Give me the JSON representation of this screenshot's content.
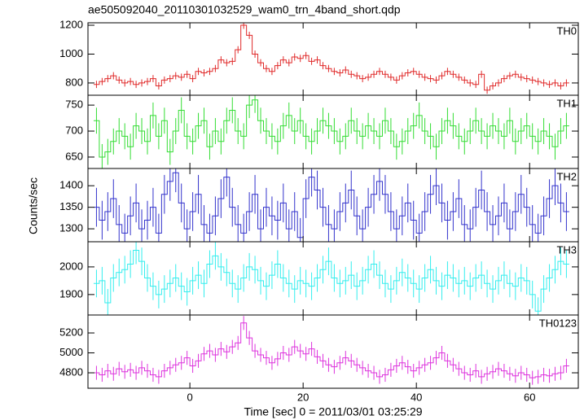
{
  "title": "ae505092040_20110301032529_wam0_trn_4band_short.qdp",
  "xlabel": "Time [sec] 0 = 2011/03/01 03:25:29",
  "ylabel": "Counts/sec",
  "xlim": [
    -18,
    68.6
  ],
  "xticks": [
    0,
    20,
    40,
    60
  ],
  "x": [
    -16.5,
    -15.5,
    -14.5,
    -13.5,
    -12.5,
    -11.5,
    -10.5,
    -9.5,
    -8.5,
    -7.5,
    -6.5,
    -5.5,
    -4.5,
    -3.5,
    -2.5,
    -1.5,
    -0.5,
    0.5,
    1.5,
    2.5,
    3.5,
    4.5,
    5.5,
    6.5,
    7.5,
    8.5,
    9.5,
    10.5,
    11.5,
    12.5,
    13.5,
    14.5,
    15.5,
    16.5,
    17.5,
    18.5,
    19.5,
    20.5,
    21.5,
    22.5,
    23.5,
    24.5,
    25.5,
    26.5,
    27.5,
    28.5,
    29.5,
    30.5,
    31.5,
    32.5,
    33.5,
    34.5,
    35.5,
    36.5,
    37.5,
    38.5,
    39.5,
    40.5,
    41.5,
    42.5,
    43.5,
    44.5,
    45.5,
    46.5,
    47.5,
    48.5,
    49.5,
    50.5,
    51.5,
    52.5,
    53.5,
    54.5,
    55.5,
    56.5,
    57.5,
    58.5,
    59.5,
    60.5,
    61.5,
    62.5,
    63.5,
    64.5,
    65.5,
    66.5
  ],
  "chart_data": [
    {
      "type": "step",
      "label": "TH0",
      "color": "#e02a2a",
      "ylim": [
        715,
        1217
      ],
      "yticks": [
        800,
        1000,
        1200
      ],
      "error": 25,
      "values": [
        790,
        810,
        830,
        850,
        820,
        800,
        810,
        790,
        800,
        810,
        830,
        780,
        820,
        830,
        850,
        840,
        860,
        830,
        880,
        870,
        880,
        900,
        960,
        940,
        950,
        1030,
        1200,
        1130,
        1000,
        940,
        900,
        880,
        920,
        960,
        940,
        980,
        970,
        990,
        950,
        960,
        920,
        900,
        880,
        870,
        890,
        860,
        850,
        830,
        840,
        860,
        880,
        860,
        840,
        820,
        850,
        870,
        880,
        860,
        840,
        830,
        820,
        850,
        880,
        860,
        840,
        820,
        800,
        790,
        860,
        750,
        780,
        800,
        830,
        850,
        860,
        840,
        830,
        820,
        810,
        800,
        790,
        800,
        780,
        800
      ]
    },
    {
      "type": "step",
      "label": "TH1",
      "color": "#33dd33",
      "ylim": [
        628,
        769
      ],
      "yticks": [
        650,
        700,
        750
      ],
      "error": 25,
      "values": [
        720,
        650,
        660,
        680,
        700,
        690,
        670,
        710,
        700,
        680,
        730,
        690,
        720,
        660,
        700,
        740,
        690,
        680,
        710,
        720,
        670,
        700,
        680,
        720,
        740,
        700,
        690,
        750,
        760,
        720,
        700,
        690,
        680,
        710,
        730,
        700,
        720,
        690,
        680,
        700,
        720,
        710,
        700,
        680,
        690,
        720,
        700,
        690,
        710,
        700,
        690,
        720,
        700,
        670,
        680,
        700,
        710,
        730,
        700,
        690,
        670,
        700,
        720,
        710,
        690,
        680,
        700,
        720,
        700,
        690,
        710,
        700,
        690,
        720,
        680,
        700,
        710,
        690,
        680,
        700,
        690,
        670,
        700,
        710
      ]
    },
    {
      "type": "step",
      "label": "TH2",
      "color": "#3333cc",
      "ylim": [
        1270,
        1440
      ],
      "yticks": [
        1300,
        1350,
        1400
      ],
      "error": 45,
      "values": [
        1350,
        1320,
        1340,
        1370,
        1310,
        1290,
        1330,
        1360,
        1300,
        1320,
        1350,
        1290,
        1380,
        1410,
        1430,
        1360,
        1300,
        1340,
        1380,
        1310,
        1290,
        1330,
        1370,
        1420,
        1350,
        1310,
        1290,
        1340,
        1380,
        1300,
        1350,
        1330,
        1320,
        1360,
        1300,
        1340,
        1280,
        1370,
        1420,
        1390,
        1350,
        1310,
        1300,
        1340,
        1360,
        1390,
        1330,
        1300,
        1350,
        1380,
        1410,
        1380,
        1340,
        1300,
        1330,
        1360,
        1320,
        1290,
        1340,
        1380,
        1400,
        1360,
        1320,
        1340,
        1370,
        1310,
        1300,
        1350,
        1390,
        1340,
        1310,
        1330,
        1360,
        1300,
        1340,
        1380,
        1350,
        1310,
        1290,
        1330,
        1370,
        1400,
        1360,
        1340
      ]
    },
    {
      "type": "step",
      "label": "TH3",
      "color": "#33eeee",
      "ylim": [
        1826,
        2091
      ],
      "yticks": [
        1900,
        2000
      ],
      "error": 50,
      "values": [
        1940,
        1950,
        1870,
        1960,
        1980,
        1990,
        2010,
        2060,
        2020,
        1960,
        1930,
        1900,
        1920,
        1940,
        1960,
        1930,
        1910,
        1950,
        1970,
        1940,
        2010,
        2040,
        2000,
        1980,
        1940,
        1920,
        1960,
        2000,
        1990,
        1950,
        1930,
        1970,
        2010,
        1960,
        1940,
        1920,
        1950,
        1940,
        1930,
        1960,
        1990,
        2020,
        1960,
        1940,
        1950,
        1970,
        1930,
        1950,
        1990,
        2010,
        1970,
        1940,
        1920,
        1950,
        1980,
        1960,
        1940,
        1920,
        1960,
        1990,
        1950,
        1930,
        1970,
        1960,
        1940,
        1950,
        1930,
        1960,
        1970,
        1940,
        1920,
        1950,
        1970,
        1940,
        1930,
        1960,
        1950,
        1900,
        1840,
        1920,
        1960,
        1990,
        2020,
        2010
      ]
    },
    {
      "type": "step",
      "label": "TH0123",
      "color": "#dd33dd",
      "ylim": [
        4645,
        5380
      ],
      "yticks": [
        4800,
        5000,
        5200
      ],
      "error": 70,
      "values": [
        4800,
        4780,
        4820,
        4790,
        4840,
        4810,
        4830,
        4800,
        4850,
        4820,
        4780,
        4760,
        4820,
        4850,
        4880,
        4900,
        4950,
        4870,
        4920,
        4990,
        5020,
        4980,
        5040,
        5010,
        5060,
        5100,
        5300,
        5150,
        5020,
        4980,
        4950,
        4900,
        4940,
        5000,
        4980,
        5060,
        5020,
        4990,
        5040,
        4960,
        4920,
        4880,
        4860,
        4900,
        4950,
        4920,
        4880,
        4850,
        4820,
        4800,
        4760,
        4780,
        4830,
        4870,
        4900,
        4860,
        4820,
        4850,
        4880,
        4900,
        4950,
        5000,
        4920,
        4880,
        4840,
        4800,
        4780,
        4820,
        4760,
        4790,
        4810,
        4840,
        4820,
        4790,
        4770,
        4800,
        4780,
        4750,
        4760,
        4780,
        4770,
        4790,
        4800,
        4870
      ]
    }
  ]
}
